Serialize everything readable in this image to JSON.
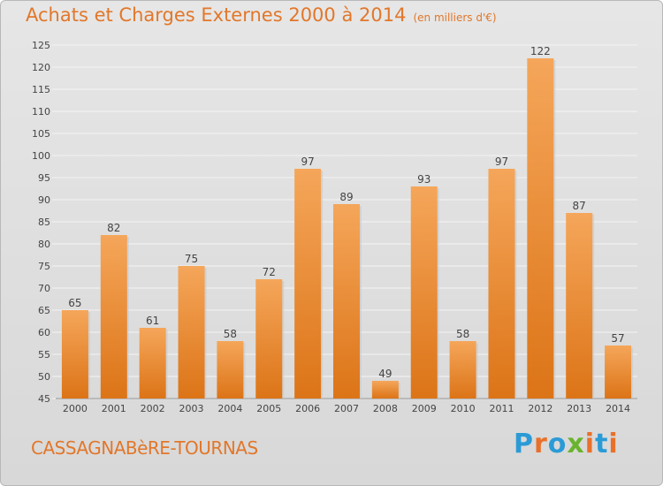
{
  "header": {
    "title": "Achats et Charges Externes 2000 à 2014",
    "subtitle": "(en milliers d'€)"
  },
  "footer": {
    "town": "CASSAGNABèRE-TOURNAS",
    "logo": "Proxiti"
  },
  "colors": {
    "title": "#e2772a",
    "bar_light": "#f5a65a",
    "bar_dark": "#dc7417",
    "logo": [
      "#2b9bd6",
      "#e9702a",
      "#2b9bd6",
      "#6ab42d",
      "#e9702a",
      "#2b9bd6",
      "#e9702a"
    ]
  },
  "chart_data": {
    "type": "bar",
    "categories": [
      "2000",
      "2001",
      "2002",
      "2003",
      "2004",
      "2005",
      "2006",
      "2007",
      "2008",
      "2009",
      "2010",
      "2011",
      "2012",
      "2013",
      "2014"
    ],
    "values": [
      65,
      82,
      61,
      75,
      58,
      72,
      97,
      89,
      49,
      93,
      58,
      97,
      122,
      87,
      57
    ],
    "ylim": [
      45,
      125
    ],
    "yticks": [
      45,
      50,
      55,
      60,
      65,
      70,
      75,
      80,
      85,
      90,
      95,
      100,
      105,
      110,
      115,
      120,
      125
    ],
    "grid": true,
    "data_labels": true
  }
}
